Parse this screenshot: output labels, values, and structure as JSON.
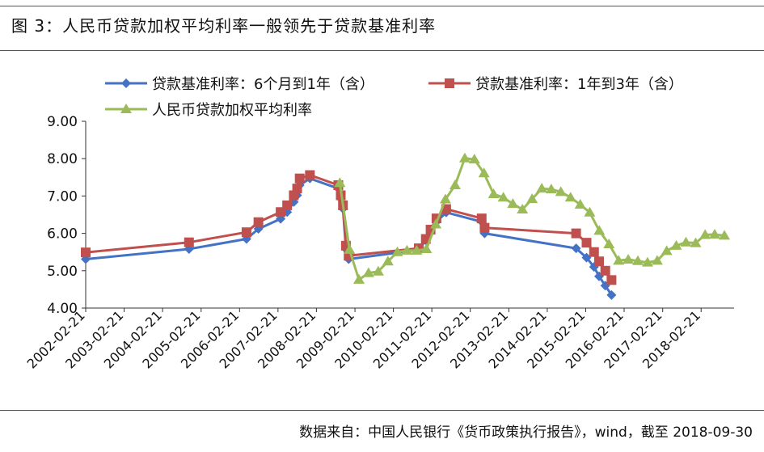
{
  "figure_title": "图 3：人民币贷款加权平均利率一般领先于贷款基准利率",
  "footer": "数据来自：中国人民银行《货币政策执行报告》，wind，截至 2018-09-30",
  "colors": {
    "blue": "#4472C4",
    "red": "#C0504D",
    "green": "#9BBB59"
  },
  "chart_data": {
    "type": "line",
    "title": "",
    "xlabel": "",
    "ylabel": "",
    "ylim": [
      4.0,
      9.0
    ],
    "yticks": [
      "9.00",
      "8.00",
      "7.00",
      "6.00",
      "5.00",
      "4.00"
    ],
    "xticks": [
      "2002-02-21",
      "2003-02-21",
      "2004-02-21",
      "2005-02-21",
      "2006-02-21",
      "2007-02-21",
      "2008-02-21",
      "2009-02-21",
      "2010-02-21",
      "2011-02-21",
      "2012-02-21",
      "2013-02-21",
      "2014-02-21",
      "2015-02-21",
      "2016-02-21",
      "2017-02-21",
      "2018-02-21"
    ],
    "legend_position": "top",
    "series": [
      {
        "name": "贷款基准利率：6个月到1年（含）",
        "color": "#4472C4",
        "marker": "diamond",
        "points": [
          {
            "x": "2002-02-21",
            "y": 5.31
          },
          {
            "x": "2004-10-29",
            "y": 5.58
          },
          {
            "x": "2006-04-28",
            "y": 5.85
          },
          {
            "x": "2006-08-19",
            "y": 6.12
          },
          {
            "x": "2007-03-18",
            "y": 6.39
          },
          {
            "x": "2007-05-19",
            "y": 6.57
          },
          {
            "x": "2007-07-21",
            "y": 6.84
          },
          {
            "x": "2007-08-22",
            "y": 7.02
          },
          {
            "x": "2007-09-15",
            "y": 7.29
          },
          {
            "x": "2007-12-21",
            "y": 7.47
          },
          {
            "x": "2008-09-16",
            "y": 7.2
          },
          {
            "x": "2008-10-09",
            "y": 6.93
          },
          {
            "x": "2008-10-30",
            "y": 6.66
          },
          {
            "x": "2008-11-27",
            "y": 5.58
          },
          {
            "x": "2008-12-23",
            "y": 5.31
          },
          {
            "x": "2010-10-20",
            "y": 5.56
          },
          {
            "x": "2010-12-26",
            "y": 5.81
          },
          {
            "x": "2011-02-09",
            "y": 6.06
          },
          {
            "x": "2011-04-06",
            "y": 6.31
          },
          {
            "x": "2011-07-07",
            "y": 6.56
          },
          {
            "x": "2012-06-08",
            "y": 6.31
          },
          {
            "x": "2012-07-06",
            "y": 6.0
          },
          {
            "x": "2014-11-22",
            "y": 5.6
          },
          {
            "x": "2015-03-01",
            "y": 5.35
          },
          {
            "x": "2015-05-11",
            "y": 5.1
          },
          {
            "x": "2015-06-28",
            "y": 4.85
          },
          {
            "x": "2015-08-26",
            "y": 4.6
          },
          {
            "x": "2015-10-24",
            "y": 4.35
          }
        ]
      },
      {
        "name": "贷款基准利率：1年到3年（含）",
        "color": "#C0504D",
        "marker": "square",
        "points": [
          {
            "x": "2002-02-21",
            "y": 5.49
          },
          {
            "x": "2004-10-29",
            "y": 5.76
          },
          {
            "x": "2006-04-28",
            "y": 6.03
          },
          {
            "x": "2006-08-19",
            "y": 6.3
          },
          {
            "x": "2007-03-18",
            "y": 6.57
          },
          {
            "x": "2007-05-19",
            "y": 6.75
          },
          {
            "x": "2007-07-21",
            "y": 7.02
          },
          {
            "x": "2007-08-22",
            "y": 7.2
          },
          {
            "x": "2007-09-15",
            "y": 7.47
          },
          {
            "x": "2007-12-21",
            "y": 7.56
          },
          {
            "x": "2008-09-16",
            "y": 7.29
          },
          {
            "x": "2008-10-09",
            "y": 7.02
          },
          {
            "x": "2008-10-30",
            "y": 6.75
          },
          {
            "x": "2008-11-27",
            "y": 5.67
          },
          {
            "x": "2008-12-23",
            "y": 5.4
          },
          {
            "x": "2010-10-20",
            "y": 5.6
          },
          {
            "x": "2010-12-26",
            "y": 5.85
          },
          {
            "x": "2011-02-09",
            "y": 6.1
          },
          {
            "x": "2011-04-06",
            "y": 6.4
          },
          {
            "x": "2011-07-07",
            "y": 6.65
          },
          {
            "x": "2012-06-08",
            "y": 6.4
          },
          {
            "x": "2012-07-06",
            "y": 6.15
          },
          {
            "x": "2014-11-22",
            "y": 6.0
          },
          {
            "x": "2015-03-01",
            "y": 5.75
          },
          {
            "x": "2015-05-11",
            "y": 5.5
          },
          {
            "x": "2015-06-28",
            "y": 5.25
          },
          {
            "x": "2015-08-26",
            "y": 5.0
          },
          {
            "x": "2015-10-24",
            "y": 4.75
          }
        ]
      },
      {
        "name": "人民币贷款加权平均利率",
        "color": "#9BBB59",
        "marker": "triangle",
        "points": [
          {
            "x": "2008-09-30",
            "y": 7.35
          },
          {
            "x": "2008-12-31",
            "y": 5.56
          },
          {
            "x": "2009-03-31",
            "y": 4.76
          },
          {
            "x": "2009-06-30",
            "y": 4.94
          },
          {
            "x": "2009-09-30",
            "y": 4.98
          },
          {
            "x": "2009-12-31",
            "y": 5.25
          },
          {
            "x": "2010-03-31",
            "y": 5.5
          },
          {
            "x": "2010-06-30",
            "y": 5.54
          },
          {
            "x": "2010-09-30",
            "y": 5.54
          },
          {
            "x": "2010-12-31",
            "y": 5.58
          },
          {
            "x": "2011-03-31",
            "y": 6.24
          },
          {
            "x": "2011-06-30",
            "y": 6.91
          },
          {
            "x": "2011-09-30",
            "y": 7.29
          },
          {
            "x": "2011-12-31",
            "y": 8.01
          },
          {
            "x": "2012-03-31",
            "y": 7.98
          },
          {
            "x": "2012-06-30",
            "y": 7.61
          },
          {
            "x": "2012-09-30",
            "y": 7.05
          },
          {
            "x": "2012-12-31",
            "y": 6.96
          },
          {
            "x": "2013-03-31",
            "y": 6.79
          },
          {
            "x": "2013-06-30",
            "y": 6.64
          },
          {
            "x": "2013-09-30",
            "y": 6.92
          },
          {
            "x": "2013-12-31",
            "y": 7.2
          },
          {
            "x": "2014-03-31",
            "y": 7.18
          },
          {
            "x": "2014-06-30",
            "y": 7.11
          },
          {
            "x": "2014-09-30",
            "y": 6.96
          },
          {
            "x": "2014-12-31",
            "y": 6.77
          },
          {
            "x": "2015-03-31",
            "y": 6.56
          },
          {
            "x": "2015-06-30",
            "y": 6.07
          },
          {
            "x": "2015-09-30",
            "y": 5.71
          },
          {
            "x": "2015-12-31",
            "y": 5.27
          },
          {
            "x": "2016-03-31",
            "y": 5.3
          },
          {
            "x": "2016-06-30",
            "y": 5.26
          },
          {
            "x": "2016-09-30",
            "y": 5.22
          },
          {
            "x": "2016-12-31",
            "y": 5.27
          },
          {
            "x": "2017-03-31",
            "y": 5.53
          },
          {
            "x": "2017-06-30",
            "y": 5.67
          },
          {
            "x": "2017-09-30",
            "y": 5.76
          },
          {
            "x": "2017-12-31",
            "y": 5.74
          },
          {
            "x": "2018-03-31",
            "y": 5.96
          },
          {
            "x": "2018-06-30",
            "y": 5.97
          },
          {
            "x": "2018-09-30",
            "y": 5.94
          }
        ]
      }
    ]
  }
}
